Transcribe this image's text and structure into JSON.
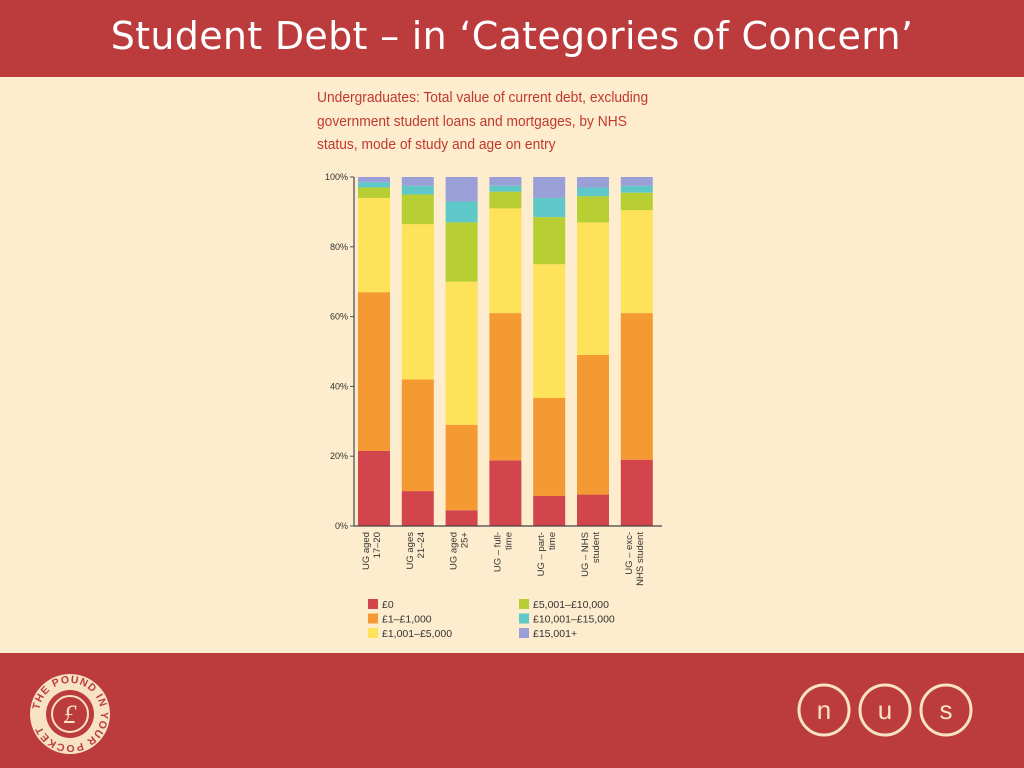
{
  "slide": {
    "title": "Student Debt – in ‘Categories of Concern’"
  },
  "chart_data": {
    "type": "bar",
    "stacked": true,
    "title_lines": [
      "Undergraduates: Total value of current debt, excluding",
      "government student loans and mortgages, by NHS",
      "status, mode of study and age on entry"
    ],
    "categories": [
      [
        "UG aged",
        "17–20"
      ],
      [
        "UG ages",
        "21–24"
      ],
      [
        "UG aged",
        "25+"
      ],
      [
        "UG – full-",
        "time"
      ],
      [
        "UG – part-",
        "time"
      ],
      [
        "UG – NHS",
        "student"
      ],
      [
        "UG – exc-",
        "NHS student"
      ]
    ],
    "ylim": [
      0,
      100
    ],
    "yticks": [
      "0%",
      "20%",
      "40%",
      "60%",
      "80%",
      "100%"
    ],
    "series": [
      {
        "name": "£0",
        "color": "#d2454d",
        "values": [
          21.5,
          10,
          4.5,
          18.8,
          8.6,
          9,
          19
        ]
      },
      {
        "name": "£1–£1,000",
        "color": "#f59a33",
        "values": [
          45.5,
          32,
          24.5,
          42.2,
          28.1,
          40,
          42
        ]
      },
      {
        "name": "£1,001–£5,000",
        "color": "#fde25a",
        "values": [
          27,
          44.5,
          41,
          30,
          38.3,
          38,
          29.5
        ]
      },
      {
        "name": "£5,001–£10,000",
        "color": "#b7cf32",
        "values": [
          3,
          8.5,
          17,
          4.8,
          13.5,
          7.5,
          5
        ]
      },
      {
        "name": "£10,001–£15,000",
        "color": "#5fc8c8",
        "values": [
          1.5,
          2.5,
          6,
          1.7,
          5.5,
          2.5,
          2
        ]
      },
      {
        "name": "£15,001+",
        "color": "#9a9fd8",
        "values": [
          1.5,
          2.5,
          7,
          2.5,
          6,
          3,
          2.5
        ]
      }
    ],
    "legend_position": "bottom"
  },
  "logos": {
    "left": {
      "text": "THE POUND IN YOUR POCKET",
      "symbol": "£"
    },
    "right": {
      "letters": [
        "n",
        "u",
        "s"
      ]
    }
  },
  "colors": {
    "brand_red": "#bc3b3d",
    "background": "#fdeccd",
    "caption": "#c0392e"
  }
}
